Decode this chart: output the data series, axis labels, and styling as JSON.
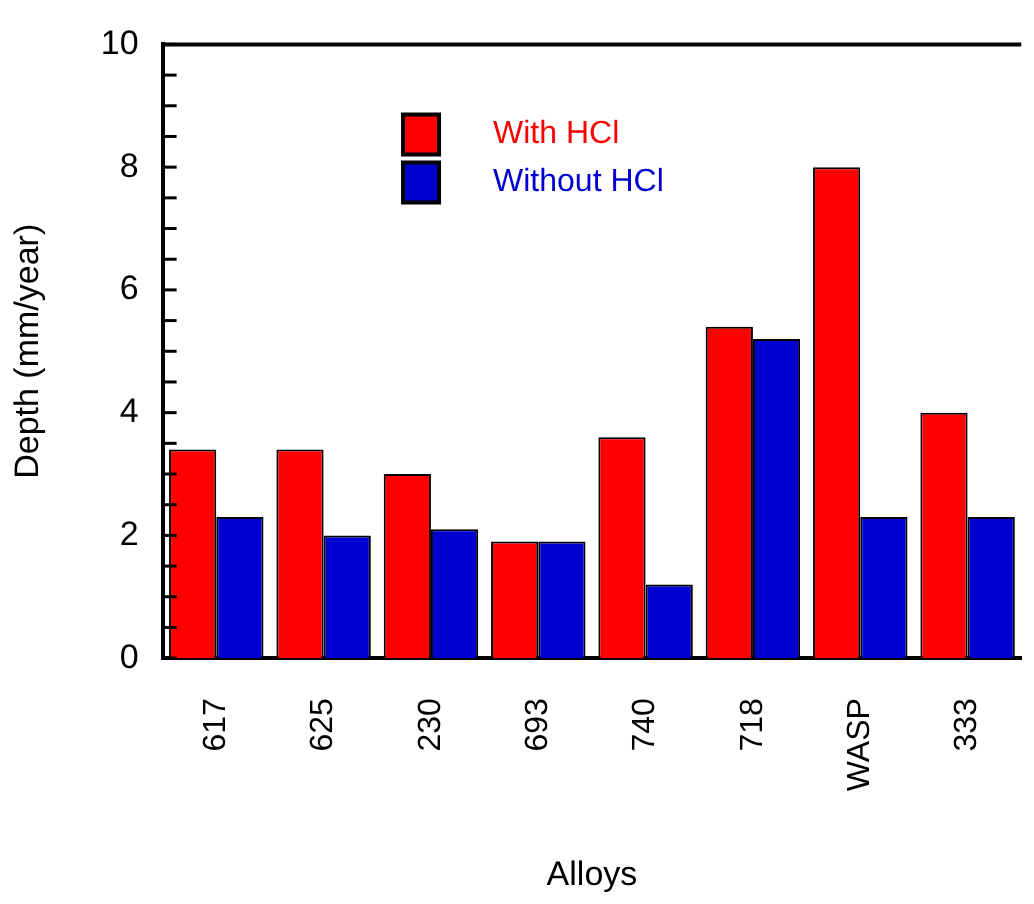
{
  "chart_data": {
    "type": "bar",
    "xlabel": "Alloys",
    "ylabel": "Depth (mm/year)",
    "categories": [
      "617",
      "625",
      "230",
      "693",
      "740",
      "718",
      "WASP",
      "333"
    ],
    "series": [
      {
        "name": "With HCl",
        "color": "#ff0000",
        "values": [
          3.4,
          3.4,
          3.0,
          1.9,
          3.6,
          5.4,
          8.0,
          4.0
        ]
      },
      {
        "name": "Without HCl",
        "color": "#0000d0",
        "values": [
          2.3,
          2.0,
          2.1,
          1.9,
          1.2,
          5.2,
          2.3,
          2.3
        ]
      }
    ],
    "ylim": [
      0,
      10
    ],
    "yticks": [
      0,
      2,
      4,
      6,
      8,
      10
    ],
    "grid": false,
    "legend": "top"
  }
}
